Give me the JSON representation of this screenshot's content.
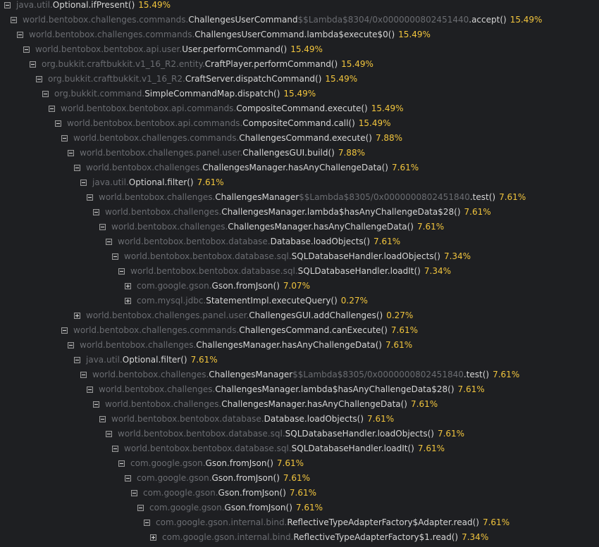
{
  "tree": {
    "rows": [
      {
        "depth": 0,
        "pkg": "java.util.",
        "cls": "Optional.ifPresent()",
        "lam": "",
        "tail": "",
        "pct": "15.49%",
        "state": "expanded"
      },
      {
        "depth": 1,
        "pkg": "world.bentobox.challenges.commands.",
        "cls": "ChallengesUserCommand",
        "lam": "$$Lambda$8304/0x0000000802451440",
        "tail": ".accept()",
        "pct": "15.49%",
        "state": "expanded"
      },
      {
        "depth": 2,
        "pkg": "world.bentobox.challenges.commands.",
        "cls": "ChallengesUserCommand.lambda$execute$0()",
        "lam": "",
        "tail": "",
        "pct": "15.49%",
        "state": "expanded"
      },
      {
        "depth": 3,
        "pkg": "world.bentobox.bentobox.api.user.",
        "cls": "User.performCommand()",
        "lam": "",
        "tail": "",
        "pct": "15.49%",
        "state": "expanded"
      },
      {
        "depth": 4,
        "pkg": "org.bukkit.craftbukkit.v1_16_R2.entity.",
        "cls": "CraftPlayer.performCommand()",
        "lam": "",
        "tail": "",
        "pct": "15.49%",
        "state": "expanded"
      },
      {
        "depth": 5,
        "pkg": "org.bukkit.craftbukkit.v1_16_R2.",
        "cls": "CraftServer.dispatchCommand()",
        "lam": "",
        "tail": "",
        "pct": "15.49%",
        "state": "expanded"
      },
      {
        "depth": 6,
        "pkg": "org.bukkit.command.",
        "cls": "SimpleCommandMap.dispatch()",
        "lam": "",
        "tail": "",
        "pct": "15.49%",
        "state": "expanded"
      },
      {
        "depth": 7,
        "pkg": "world.bentobox.bentobox.api.commands.",
        "cls": "CompositeCommand.execute()",
        "lam": "",
        "tail": "",
        "pct": "15.49%",
        "state": "expanded"
      },
      {
        "depth": 8,
        "pkg": "world.bentobox.bentobox.api.commands.",
        "cls": "CompositeCommand.call()",
        "lam": "",
        "tail": "",
        "pct": "15.49%",
        "state": "expanded"
      },
      {
        "depth": 9,
        "pkg": "world.bentobox.challenges.commands.",
        "cls": "ChallengesCommand.execute()",
        "lam": "",
        "tail": "",
        "pct": "7.88%",
        "state": "expanded"
      },
      {
        "depth": 10,
        "pkg": "world.bentobox.challenges.panel.user.",
        "cls": "ChallengesGUI.build()",
        "lam": "",
        "tail": "",
        "pct": "7.88%",
        "state": "expanded"
      },
      {
        "depth": 11,
        "pkg": "world.bentobox.challenges.",
        "cls": "ChallengesManager.hasAnyChallengeData()",
        "lam": "",
        "tail": "",
        "pct": "7.61%",
        "state": "expanded"
      },
      {
        "depth": 12,
        "pkg": "java.util.",
        "cls": "Optional.filter()",
        "lam": "",
        "tail": "",
        "pct": "7.61%",
        "state": "expanded"
      },
      {
        "depth": 13,
        "pkg": "world.bentobox.challenges.",
        "cls": "ChallengesManager",
        "lam": "$$Lambda$8305/0x0000000802451840",
        "tail": ".test()",
        "pct": "7.61%",
        "state": "expanded"
      },
      {
        "depth": 14,
        "pkg": "world.bentobox.challenges.",
        "cls": "ChallengesManager.lambda$hasAnyChallengeData$28()",
        "lam": "",
        "tail": "",
        "pct": "7.61%",
        "state": "expanded"
      },
      {
        "depth": 15,
        "pkg": "world.bentobox.challenges.",
        "cls": "ChallengesManager.hasAnyChallengeData()",
        "lam": "",
        "tail": "",
        "pct": "7.61%",
        "state": "expanded"
      },
      {
        "depth": 16,
        "pkg": "world.bentobox.bentobox.database.",
        "cls": "Database.loadObjects()",
        "lam": "",
        "tail": "",
        "pct": "7.61%",
        "state": "expanded"
      },
      {
        "depth": 17,
        "pkg": "world.bentobox.bentobox.database.sql.",
        "cls": "SQLDatabaseHandler.loadObjects()",
        "lam": "",
        "tail": "",
        "pct": "7.34%",
        "state": "expanded"
      },
      {
        "depth": 18,
        "pkg": "world.bentobox.bentobox.database.sql.",
        "cls": "SQLDatabaseHandler.loadIt()",
        "lam": "",
        "tail": "",
        "pct": "7.34%",
        "state": "expanded"
      },
      {
        "depth": 19,
        "pkg": "com.google.gson.",
        "cls": "Gson.fromJson()",
        "lam": "",
        "tail": "",
        "pct": "7.07%",
        "state": "collapsed"
      },
      {
        "depth": 19,
        "pkg": "com.mysql.jdbc.",
        "cls": "StatementImpl.executeQuery()",
        "lam": "",
        "tail": "",
        "pct": "0.27%",
        "state": "collapsed"
      },
      {
        "depth": 11,
        "pkg": "world.bentobox.challenges.panel.user.",
        "cls": "ChallengesGUI.addChallenges()",
        "lam": "",
        "tail": "",
        "pct": "0.27%",
        "state": "collapsed"
      },
      {
        "depth": 9,
        "pkg": "world.bentobox.challenges.commands.",
        "cls": "ChallengesCommand.canExecute()",
        "lam": "",
        "tail": "",
        "pct": "7.61%",
        "state": "expanded"
      },
      {
        "depth": 10,
        "pkg": "world.bentobox.challenges.",
        "cls": "ChallengesManager.hasAnyChallengeData()",
        "lam": "",
        "tail": "",
        "pct": "7.61%",
        "state": "expanded"
      },
      {
        "depth": 11,
        "pkg": "java.util.",
        "cls": "Optional.filter()",
        "lam": "",
        "tail": "",
        "pct": "7.61%",
        "state": "expanded"
      },
      {
        "depth": 12,
        "pkg": "world.bentobox.challenges.",
        "cls": "ChallengesManager",
        "lam": "$$Lambda$8305/0x0000000802451840",
        "tail": ".test()",
        "pct": "7.61%",
        "state": "expanded"
      },
      {
        "depth": 13,
        "pkg": "world.bentobox.challenges.",
        "cls": "ChallengesManager.lambda$hasAnyChallengeData$28()",
        "lam": "",
        "tail": "",
        "pct": "7.61%",
        "state": "expanded"
      },
      {
        "depth": 14,
        "pkg": "world.bentobox.challenges.",
        "cls": "ChallengesManager.hasAnyChallengeData()",
        "lam": "",
        "tail": "",
        "pct": "7.61%",
        "state": "expanded"
      },
      {
        "depth": 15,
        "pkg": "world.bentobox.bentobox.database.",
        "cls": "Database.loadObjects()",
        "lam": "",
        "tail": "",
        "pct": "7.61%",
        "state": "expanded"
      },
      {
        "depth": 16,
        "pkg": "world.bentobox.bentobox.database.sql.",
        "cls": "SQLDatabaseHandler.loadObjects()",
        "lam": "",
        "tail": "",
        "pct": "7.61%",
        "state": "expanded"
      },
      {
        "depth": 17,
        "pkg": "world.bentobox.bentobox.database.sql.",
        "cls": "SQLDatabaseHandler.loadIt()",
        "lam": "",
        "tail": "",
        "pct": "7.61%",
        "state": "expanded"
      },
      {
        "depth": 18,
        "pkg": "com.google.gson.",
        "cls": "Gson.fromJson()",
        "lam": "",
        "tail": "",
        "pct": "7.61%",
        "state": "expanded"
      },
      {
        "depth": 19,
        "pkg": "com.google.gson.",
        "cls": "Gson.fromJson()",
        "lam": "",
        "tail": "",
        "pct": "7.61%",
        "state": "expanded"
      },
      {
        "depth": 20,
        "pkg": "com.google.gson.",
        "cls": "Gson.fromJson()",
        "lam": "",
        "tail": "",
        "pct": "7.61%",
        "state": "expanded"
      },
      {
        "depth": 21,
        "pkg": "com.google.gson.",
        "cls": "Gson.fromJson()",
        "lam": "",
        "tail": "",
        "pct": "7.61%",
        "state": "expanded"
      },
      {
        "depth": 22,
        "pkg": "com.google.gson.internal.bind.",
        "cls": "ReflectiveTypeAdapterFactory$Adapter.read()",
        "lam": "",
        "tail": "",
        "pct": "7.61%",
        "state": "expanded"
      },
      {
        "depth": 23,
        "pkg": "com.google.gson.internal.bind.",
        "cls": "ReflectiveTypeAdapterFactory$1.read()",
        "lam": "",
        "tail": "",
        "pct": "7.34%",
        "state": "collapsed"
      }
    ]
  }
}
